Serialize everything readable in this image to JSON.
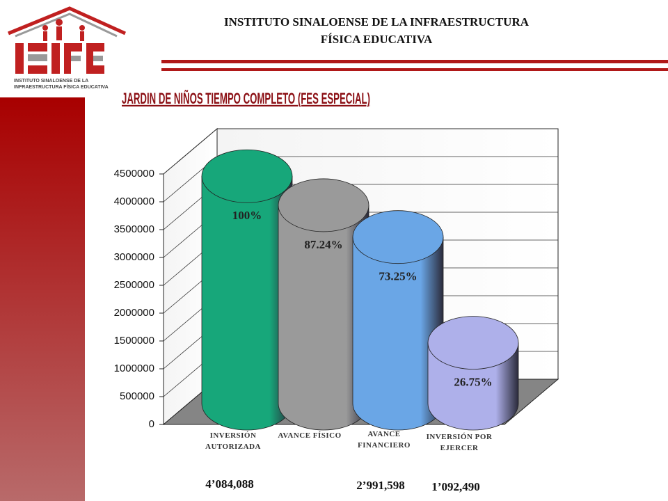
{
  "header": {
    "title_lines": [
      "INSTITUTO SINALOENSE DE LA INFRAESTRUCTURA",
      "FÍSICA EDUCATIVA"
    ]
  },
  "logo": {
    "caption_lines": [
      "INSTITUTO SINALOENSE DE LA",
      "INFRAESTRUCTURA FÍSICA EDUCATIVA"
    ]
  },
  "chart_data": {
    "type": "cylinder",
    "title": "JARDIN DE NIÑOS TIEMPO COMPLETO (FES ESPECIAL)",
    "categories": [
      "INVERSIÓN AUTORIZADA",
      "AVANCE FÍSICO",
      "AVANCE FINANCIERO",
      "INVERSIÓN POR EJERCER"
    ],
    "values": [
      4084088,
      3563000,
      2991598,
      1092490
    ],
    "value_labels": [
      "4’084,088",
      null,
      "2’991,598",
      "1’092,490"
    ],
    "percent_labels": [
      "100%",
      "87.24%",
      "73.25%",
      "26.75%"
    ],
    "colors": [
      "#17a77a",
      "#9a9a9a",
      "#6aa6e6",
      "#aeb0ea"
    ],
    "ylim": [
      0,
      4500000
    ],
    "yticks": [
      0,
      500000,
      1000000,
      1500000,
      2000000,
      2500000,
      3000000,
      3500000,
      4000000,
      4500000
    ],
    "grid": true
  }
}
